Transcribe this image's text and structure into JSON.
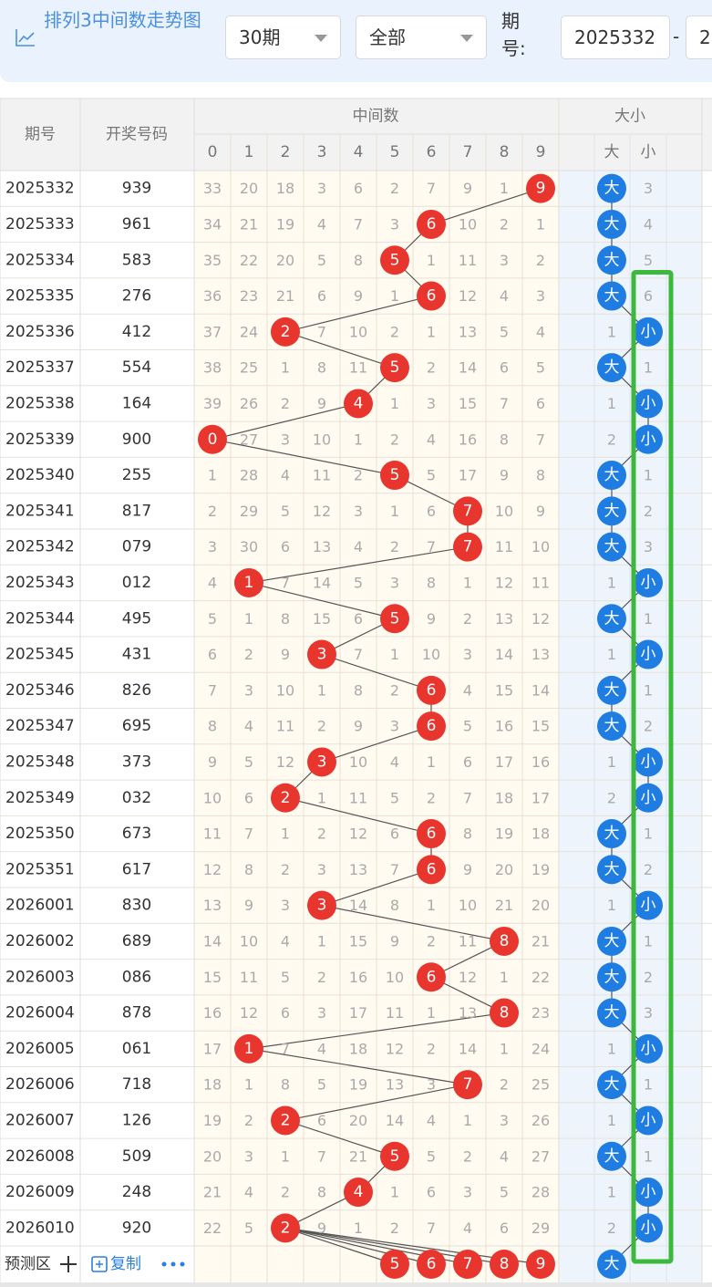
{
  "header": {
    "title": "排列3中间数走势图",
    "period_select": "30期",
    "type_select": "全部",
    "period_label": "期号:",
    "start": "2025332",
    "dash": "-",
    "end": "2"
  },
  "table": {
    "columns": {
      "period": "期号",
      "number": "开奖号码",
      "mid": "中间数",
      "size": "大小",
      "digits": [
        0,
        1,
        2,
        3,
        4,
        5,
        6,
        7,
        8,
        9
      ],
      "big": "大",
      "small": "小"
    },
    "rows": [
      {
        "period": "2025332",
        "number": "939",
        "cells": [
          33,
          20,
          18,
          3,
          6,
          2,
          7,
          9,
          1,
          null
        ],
        "mid": 9,
        "big": "大",
        "small": 3
      },
      {
        "period": "2025333",
        "number": "961",
        "cells": [
          34,
          21,
          19,
          4,
          7,
          3,
          null,
          10,
          2,
          1
        ],
        "mid": 6,
        "big": "大",
        "small": 4
      },
      {
        "period": "2025334",
        "number": "583",
        "cells": [
          35,
          22,
          20,
          5,
          8,
          null,
          1,
          11,
          3,
          2
        ],
        "mid": 5,
        "big": "大",
        "small": 5
      },
      {
        "period": "2025335",
        "number": "276",
        "cells": [
          36,
          23,
          21,
          6,
          9,
          1,
          null,
          12,
          4,
          3
        ],
        "mid": 6,
        "big": "大",
        "small": 6
      },
      {
        "period": "2025336",
        "number": "412",
        "cells": [
          37,
          24,
          null,
          7,
          10,
          2,
          1,
          13,
          5,
          4
        ],
        "mid": 2,
        "big": 1,
        "small": "小"
      },
      {
        "period": "2025337",
        "number": "554",
        "cells": [
          38,
          25,
          1,
          8,
          11,
          null,
          2,
          14,
          6,
          5
        ],
        "mid": 5,
        "big": "大",
        "small": 1
      },
      {
        "period": "2025338",
        "number": "164",
        "cells": [
          39,
          26,
          2,
          9,
          null,
          1,
          3,
          15,
          7,
          6
        ],
        "mid": 4,
        "big": 1,
        "small": "小"
      },
      {
        "period": "2025339",
        "number": "900",
        "cells": [
          null,
          27,
          3,
          10,
          1,
          2,
          4,
          16,
          8,
          7
        ],
        "mid": 0,
        "big": 2,
        "small": "小"
      },
      {
        "period": "2025340",
        "number": "255",
        "cells": [
          1,
          28,
          4,
          11,
          2,
          null,
          5,
          17,
          9,
          8
        ],
        "mid": 5,
        "big": "大",
        "small": 1
      },
      {
        "period": "2025341",
        "number": "817",
        "cells": [
          2,
          29,
          5,
          12,
          3,
          1,
          6,
          null,
          10,
          9
        ],
        "mid": 7,
        "big": "大",
        "small": 2
      },
      {
        "period": "2025342",
        "number": "079",
        "cells": [
          3,
          30,
          6,
          13,
          4,
          2,
          7,
          null,
          11,
          10
        ],
        "mid": 7,
        "big": "大",
        "small": 3
      },
      {
        "period": "2025343",
        "number": "012",
        "cells": [
          4,
          null,
          7,
          14,
          5,
          3,
          8,
          1,
          12,
          11
        ],
        "mid": 1,
        "big": 1,
        "small": "小"
      },
      {
        "period": "2025344",
        "number": "495",
        "cells": [
          5,
          1,
          8,
          15,
          6,
          null,
          9,
          2,
          13,
          12
        ],
        "mid": 5,
        "big": "大",
        "small": 1
      },
      {
        "period": "2025345",
        "number": "431",
        "cells": [
          6,
          2,
          9,
          null,
          7,
          1,
          10,
          3,
          14,
          13
        ],
        "mid": 3,
        "big": 1,
        "small": "小"
      },
      {
        "period": "2025346",
        "number": "826",
        "cells": [
          7,
          3,
          10,
          1,
          8,
          2,
          null,
          4,
          15,
          14
        ],
        "mid": 6,
        "big": "大",
        "small": 1
      },
      {
        "period": "2025347",
        "number": "695",
        "cells": [
          8,
          4,
          11,
          2,
          9,
          3,
          null,
          5,
          16,
          15
        ],
        "mid": 6,
        "big": "大",
        "small": 2
      },
      {
        "period": "2025348",
        "number": "373",
        "cells": [
          9,
          5,
          12,
          null,
          10,
          4,
          1,
          6,
          17,
          16
        ],
        "mid": 3,
        "big": 1,
        "small": "小"
      },
      {
        "period": "2025349",
        "number": "032",
        "cells": [
          10,
          6,
          null,
          1,
          11,
          5,
          2,
          7,
          18,
          17
        ],
        "mid": 2,
        "big": 2,
        "small": "小"
      },
      {
        "period": "2025350",
        "number": "673",
        "cells": [
          11,
          7,
          1,
          2,
          12,
          6,
          null,
          8,
          19,
          18
        ],
        "mid": 6,
        "big": "大",
        "small": 1
      },
      {
        "period": "2025351",
        "number": "617",
        "cells": [
          12,
          8,
          2,
          3,
          13,
          7,
          null,
          9,
          20,
          19
        ],
        "mid": 6,
        "big": "大",
        "small": 2
      },
      {
        "period": "2026001",
        "number": "830",
        "cells": [
          13,
          9,
          3,
          null,
          14,
          8,
          1,
          10,
          21,
          20
        ],
        "mid": 3,
        "big": 1,
        "small": "小"
      },
      {
        "period": "2026002",
        "number": "689",
        "cells": [
          14,
          10,
          4,
          1,
          15,
          9,
          2,
          11,
          null,
          21
        ],
        "mid": 8,
        "big": "大",
        "small": 1
      },
      {
        "period": "2026003",
        "number": "086",
        "cells": [
          15,
          11,
          5,
          2,
          16,
          10,
          null,
          12,
          1,
          22
        ],
        "mid": 6,
        "big": "大",
        "small": 2
      },
      {
        "period": "2026004",
        "number": "878",
        "cells": [
          16,
          12,
          6,
          3,
          17,
          11,
          1,
          13,
          null,
          23
        ],
        "mid": 8,
        "big": "大",
        "small": 3
      },
      {
        "period": "2026005",
        "number": "061",
        "cells": [
          17,
          null,
          7,
          4,
          18,
          12,
          2,
          14,
          1,
          24
        ],
        "mid": 1,
        "big": 1,
        "small": "小"
      },
      {
        "period": "2026006",
        "number": "718",
        "cells": [
          18,
          1,
          8,
          5,
          19,
          13,
          3,
          null,
          2,
          25
        ],
        "mid": 7,
        "big": "大",
        "small": 1
      },
      {
        "period": "2026007",
        "number": "126",
        "cells": [
          19,
          2,
          null,
          6,
          20,
          14,
          4,
          1,
          3,
          26
        ],
        "mid": 2,
        "big": 1,
        "small": "小"
      },
      {
        "period": "2026008",
        "number": "509",
        "cells": [
          20,
          3,
          1,
          7,
          21,
          null,
          5,
          2,
          4,
          27
        ],
        "mid": 5,
        "big": "大",
        "small": 1
      },
      {
        "period": "2026009",
        "number": "248",
        "cells": [
          21,
          4,
          2,
          8,
          null,
          1,
          6,
          3,
          5,
          28
        ],
        "mid": 4,
        "big": 1,
        "small": "小"
      },
      {
        "period": "2026010",
        "number": "920",
        "cells": [
          22,
          5,
          null,
          9,
          1,
          2,
          7,
          4,
          6,
          29
        ],
        "mid": 2,
        "big": 2,
        "small": "小"
      }
    ],
    "predict": {
      "label": "预测区",
      "copy": "复制",
      "mids": [
        5,
        6,
        7,
        8,
        9
      ],
      "size": "大"
    }
  }
}
